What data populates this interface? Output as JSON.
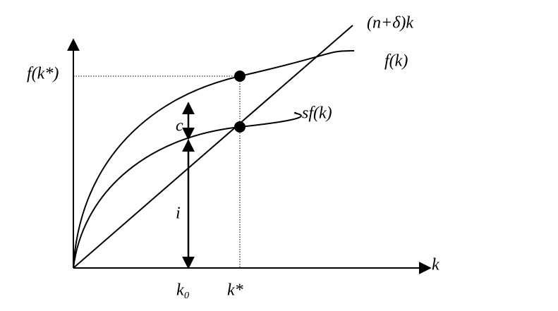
{
  "labels": {
    "line": "(n+δ)k",
    "production": "f(k)",
    "saving": "sf(k)",
    "steady_output": "f(k*)",
    "consumption": "c",
    "investment": "i",
    "x_axis": "k",
    "k_initial": "k₀",
    "k_steady": "k*"
  }
}
